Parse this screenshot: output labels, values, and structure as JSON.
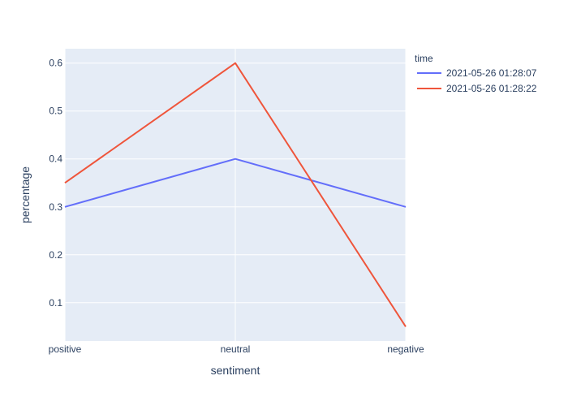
{
  "chart_data": {
    "type": "line",
    "categories": [
      "positive",
      "neutral",
      "negative"
    ],
    "series": [
      {
        "name": "2021-05-26 01:28:07",
        "values": [
          0.3,
          0.4,
          0.3
        ],
        "color": "#636efa"
      },
      {
        "name": "2021-05-26 01:28:22",
        "values": [
          0.35,
          0.6,
          0.05
        ],
        "color": "#ef553b"
      }
    ],
    "xlabel": "sentiment",
    "ylabel": "percentage",
    "ylim": [
      0.02,
      0.63
    ],
    "yticks": [
      "0.1",
      "0.2",
      "0.3",
      "0.4",
      "0.5",
      "0.6"
    ],
    "legend_title": "time",
    "legend_position": "right",
    "grid": true,
    "colors": {
      "plot_bg": "#e5ecf6",
      "grid": "#ffffff",
      "text": "#2a3f5f"
    }
  }
}
